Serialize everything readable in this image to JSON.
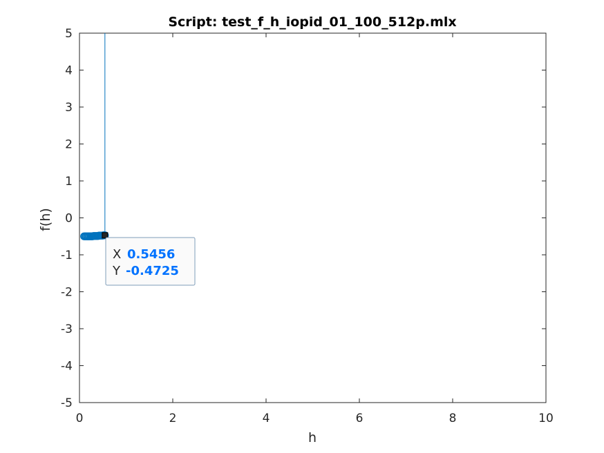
{
  "chart_data": {
    "type": "scatter",
    "title": "Script: test_f_h_iopid_01_100_512p.mlx",
    "xlabel": "h",
    "ylabel": "f(h)",
    "xlim": [
      0,
      10
    ],
    "ylim": [
      -5,
      5
    ],
    "xticks": [
      "0",
      "2",
      "4",
      "6",
      "8",
      "10"
    ],
    "yticks": [
      "-5",
      "-4",
      "-3",
      "-2",
      "-1",
      "0",
      "1",
      "2",
      "3",
      "4",
      "5"
    ],
    "grid": false,
    "series_color": "#0072BD",
    "points": [
      {
        "x": 0.1,
        "y": -0.5
      },
      {
        "x": 0.12,
        "y": -0.5
      },
      {
        "x": 0.14,
        "y": -0.5
      },
      {
        "x": 0.16,
        "y": -0.5
      },
      {
        "x": 0.18,
        "y": -0.5
      },
      {
        "x": 0.2,
        "y": -0.5
      },
      {
        "x": 0.22,
        "y": -0.5
      },
      {
        "x": 0.24,
        "y": -0.5
      },
      {
        "x": 0.26,
        "y": -0.5
      },
      {
        "x": 0.28,
        "y": -0.5
      },
      {
        "x": 0.3,
        "y": -0.49
      },
      {
        "x": 0.32,
        "y": -0.49
      },
      {
        "x": 0.34,
        "y": -0.49
      },
      {
        "x": 0.36,
        "y": -0.49
      },
      {
        "x": 0.38,
        "y": -0.49
      },
      {
        "x": 0.4,
        "y": -0.49
      },
      {
        "x": 0.42,
        "y": -0.48
      },
      {
        "x": 0.44,
        "y": -0.48
      },
      {
        "x": 0.46,
        "y": -0.48
      },
      {
        "x": 0.48,
        "y": -0.48
      },
      {
        "x": 0.5,
        "y": -0.48
      },
      {
        "x": 0.52,
        "y": -0.47
      },
      {
        "x": 0.5456,
        "y": -0.4725
      }
    ],
    "vertical_segment": {
      "x": 0.5456,
      "y_from": -0.4725,
      "y_to": 5
    },
    "datatip": {
      "x_key": "X",
      "x_value": "0.5456",
      "y_key": "Y",
      "y_value": "-0.4725",
      "point": {
        "x": 0.5456,
        "y": -0.4725
      },
      "value_color": "#0072FF"
    }
  }
}
